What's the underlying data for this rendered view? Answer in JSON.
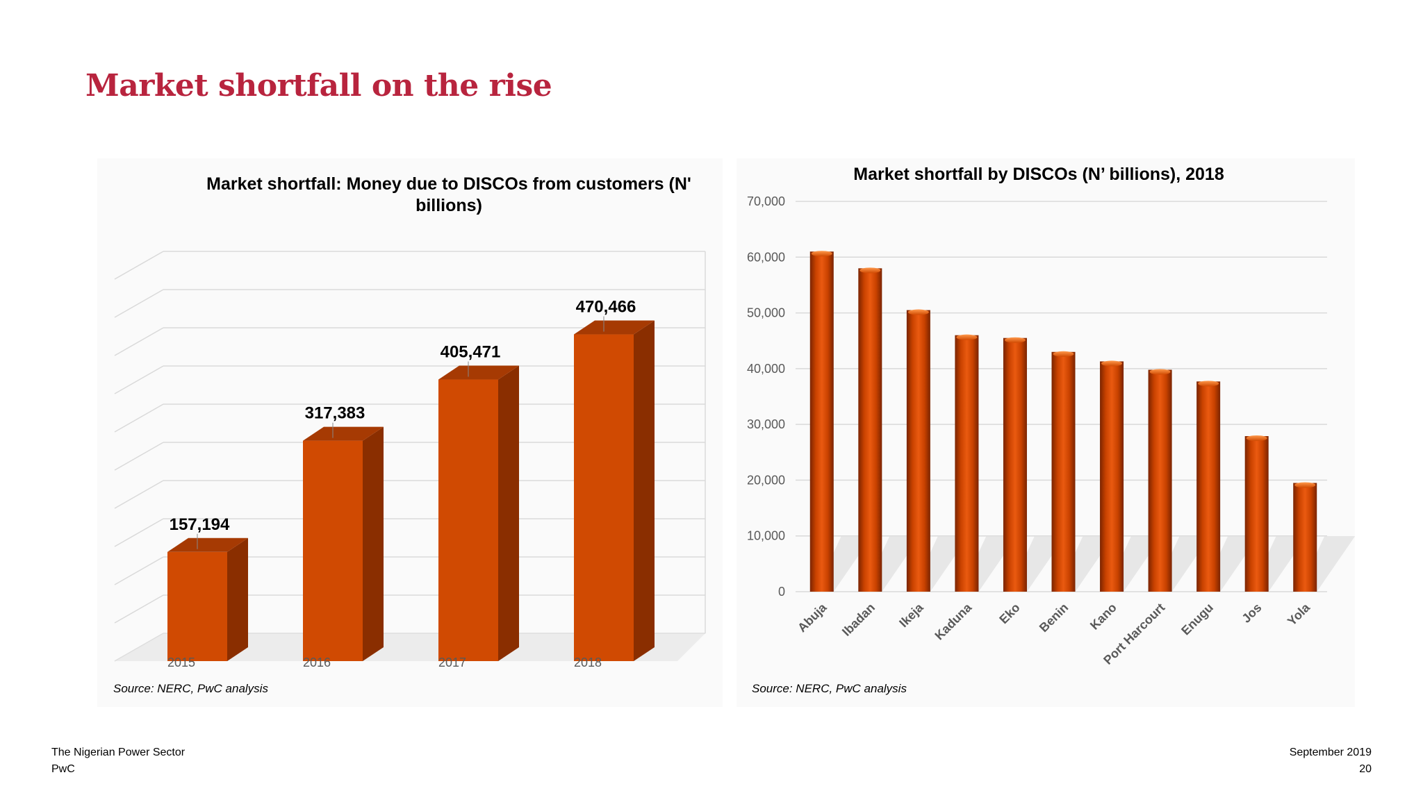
{
  "slide": {
    "title": "Market shortfall on the rise"
  },
  "colors": {
    "title": "#b8243e",
    "bar_front": "#d04a02",
    "bar_side": "#8a2e00",
    "bar_top": "#a63a03"
  },
  "left_chart": {
    "source": "Source: NERC, PwC analysis"
  },
  "right_chart": {
    "source": "Source: NERC, PwC analysis"
  },
  "footer": {
    "left_line1": "The Nigerian Power Sector",
    "left_line2": "PwC",
    "right_line1": "September 2019",
    "right_line2": "20"
  },
  "chart_data": [
    {
      "type": "bar",
      "title_line1": "Market shortfall: Money due to DISCOs from customers (N'",
      "title_line2": "billions)",
      "categories": [
        "2015",
        "2016",
        "2017",
        "2018"
      ],
      "values": [
        157194,
        317383,
        405471,
        470466
      ],
      "data_labels": [
        "157,194",
        "317,383",
        "405,471",
        "470,466"
      ],
      "ylim": [
        0,
        550000
      ],
      "grid": true,
      "y_tick_labels_shown": false,
      "style": "3d"
    },
    {
      "type": "bar",
      "title": "Market shortfall by DISCOs (N’ billions), 2018",
      "categories": [
        "Abuja",
        "Ibadan",
        "Ikeja",
        "Kaduna",
        "Eko",
        "Benin",
        "Kano",
        "Port Harcourt",
        "Enugu",
        "Jos",
        "Yola"
      ],
      "values": [
        61000,
        58000,
        50500,
        46000,
        45500,
        43000,
        41300,
        39800,
        37700,
        27900,
        19500
      ],
      "ylim": [
        0,
        70000
      ],
      "y_ticks": [
        "0",
        "10,000",
        "20,000",
        "30,000",
        "40,000",
        "50,000",
        "60,000",
        "70,000"
      ],
      "grid": true
    }
  ]
}
